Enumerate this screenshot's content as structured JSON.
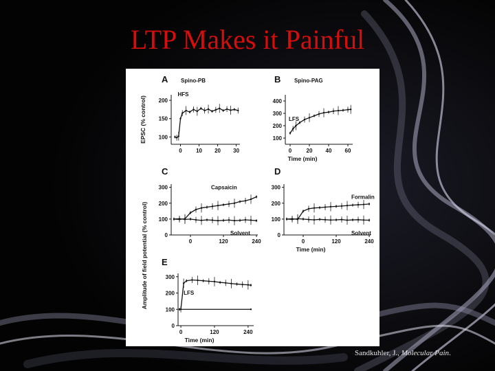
{
  "slide": {
    "title": "LTP Makes it Painful",
    "citation_author": "Sandkuhler, J., ",
    "citation_journal": "Molecular Pain",
    "citation_end": ".",
    "title_color": "#d40d0d"
  },
  "chart_data": [
    {
      "id": "A",
      "type": "line",
      "panel_label": "A",
      "title": "Spino-PB",
      "ylabel": "EPSC (% control)",
      "xlabel": "",
      "xlim": [
        -5,
        32
      ],
      "ylim": [
        80,
        215
      ],
      "xticks": [
        0,
        10,
        20,
        30
      ],
      "yticks": [
        100,
        150,
        200
      ],
      "annotations": [
        {
          "text": "HFS",
          "x": 0,
          "y": 200
        }
      ],
      "series": [
        {
          "style": "errorline",
          "x": [
            -3,
            -2,
            -1,
            0,
            1,
            3,
            5,
            7,
            9,
            11,
            13,
            15,
            17,
            19,
            21,
            23,
            25,
            27,
            29,
            31
          ],
          "y": [
            100,
            98,
            102,
            150,
            165,
            172,
            168,
            175,
            170,
            178,
            172,
            176,
            170,
            174,
            178,
            172,
            176,
            173,
            175,
            172
          ]
        }
      ]
    },
    {
      "id": "B",
      "type": "line",
      "panel_label": "B",
      "title": "Spino-PAG",
      "ylabel": "",
      "xlabel": "Time (min)",
      "xlim": [
        -5,
        65
      ],
      "ylim": [
        50,
        450
      ],
      "xticks": [
        0,
        20,
        40,
        60
      ],
      "yticks": [
        100,
        200,
        300,
        400
      ],
      "annotations": [
        {
          "text": "LFS",
          "x": 0,
          "y": 250
        }
      ],
      "series": [
        {
          "style": "errorline",
          "x": [
            0,
            3,
            6,
            10,
            15,
            20,
            25,
            30,
            35,
            40,
            45,
            50,
            55,
            60,
            63
          ],
          "y": [
            140,
            175,
            200,
            225,
            250,
            265,
            280,
            295,
            305,
            310,
            318,
            322,
            325,
            330,
            332
          ]
        }
      ]
    },
    {
      "id": "C",
      "type": "line",
      "panel_label": "C",
      "title": "",
      "ylabel": "",
      "xlabel": "",
      "xlim": [
        -70,
        245
      ],
      "ylim": [
        0,
        320
      ],
      "xticks": [
        0,
        120,
        240
      ],
      "yticks": [
        0,
        100,
        200,
        300
      ],
      "annotations": [
        {
          "text": "Capsaicin",
          "x": 180,
          "y": 270
        },
        {
          "text": "Solvent",
          "x": 190,
          "y": 60
        }
      ],
      "series": [
        {
          "name": "Capsaicin",
          "style": "errorline",
          "x": [
            -60,
            -40,
            -20,
            0,
            20,
            40,
            60,
            80,
            100,
            120,
            140,
            160,
            180,
            200,
            220,
            240
          ],
          "y": [
            100,
            98,
            102,
            140,
            160,
            170,
            175,
            180,
            185,
            190,
            195,
            200,
            210,
            215,
            225,
            240
          ]
        },
        {
          "name": "Solvent",
          "style": "errorline",
          "x": [
            -60,
            -40,
            -20,
            0,
            20,
            40,
            60,
            80,
            100,
            120,
            140,
            160,
            180,
            200,
            220,
            240
          ],
          "y": [
            100,
            102,
            98,
            100,
            95,
            92,
            95,
            93,
            90,
            92,
            94,
            90,
            92,
            95,
            93,
            90
          ]
        }
      ]
    },
    {
      "id": "D",
      "type": "line",
      "panel_label": "D",
      "title": "",
      "ylabel": "",
      "xlabel": "Time (min)",
      "xlim": [
        -70,
        245
      ],
      "ylim": [
        0,
        320
      ],
      "xticks": [
        0,
        120,
        240
      ],
      "yticks": [
        0,
        100,
        200,
        300
      ],
      "annotations": [
        {
          "text": "Formalin",
          "x": 205,
          "y": 235
        },
        {
          "text": "Solvent",
          "x": 205,
          "y": 60
        }
      ],
      "series": [
        {
          "name": "Formalin",
          "style": "errorline",
          "x": [
            -60,
            -40,
            -20,
            0,
            20,
            40,
            60,
            80,
            100,
            120,
            140,
            160,
            180,
            200,
            220,
            240
          ],
          "y": [
            100,
            102,
            98,
            150,
            165,
            170,
            172,
            175,
            178,
            180,
            182,
            185,
            188,
            190,
            192,
            195
          ]
        },
        {
          "name": "Solvent",
          "style": "errorline",
          "x": [
            -60,
            -40,
            -20,
            0,
            20,
            40,
            60,
            80,
            100,
            120,
            140,
            160,
            180,
            200,
            220,
            240
          ],
          "y": [
            100,
            98,
            102,
            100,
            97,
            95,
            98,
            96,
            94,
            95,
            97,
            93,
            95,
            96,
            94,
            93
          ]
        }
      ]
    },
    {
      "id": "E",
      "type": "line",
      "panel_label": "E",
      "title": "",
      "ylabel": "",
      "xlabel": "Time (min)",
      "xlim": [
        -10,
        260
      ],
      "ylim": [
        0,
        320
      ],
      "xticks": [
        0,
        120,
        240
      ],
      "yticks": [
        0,
        100,
        200,
        300
      ],
      "annotations": [
        {
          "text": "LFS",
          "x": 5,
          "y": 190
        }
      ],
      "series": [
        {
          "style": "errorline",
          "x": [
            -5,
            0,
            10,
            20,
            40,
            60,
            80,
            100,
            120,
            140,
            160,
            180,
            200,
            220,
            240,
            250
          ],
          "y": [
            100,
            100,
            260,
            275,
            280,
            278,
            275,
            272,
            270,
            265,
            262,
            258,
            255,
            252,
            250,
            248
          ]
        },
        {
          "style": "plain",
          "x": [
            -5,
            250
          ],
          "y": [
            100,
            100
          ]
        }
      ]
    }
  ],
  "shared_labels": {
    "left_ylabel_cde": "Amplitude of field potential  (% control)"
  }
}
